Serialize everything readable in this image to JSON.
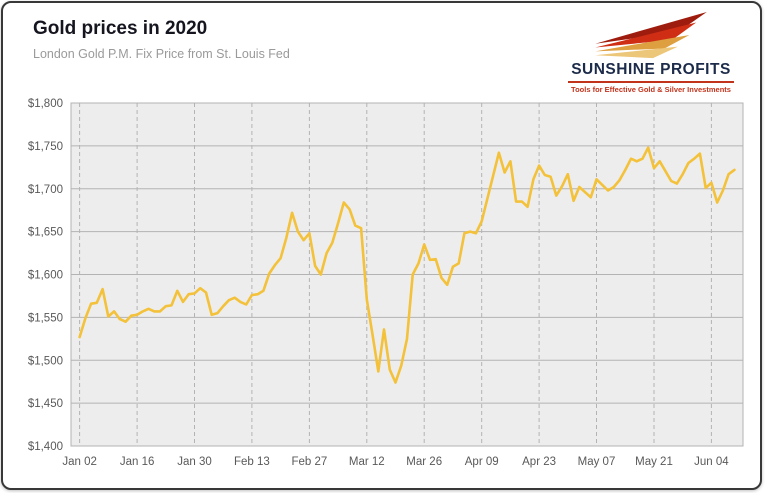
{
  "header": {
    "title": "Gold prices in 2020",
    "subtitle": "London Gold P.M. Fix Price from St. Louis Fed"
  },
  "logo": {
    "word1": "SUNSHINE",
    "word2": "PROFITS",
    "tagline": "Tools for Effective Gold & Silver Investments",
    "navy": "#1c2b4a",
    "red": "#c2331c",
    "gold": "#e0a03c"
  },
  "chart_data": {
    "type": "line",
    "title": "Gold prices in 2020",
    "subtitle": "London Gold P.M. Fix Price from St. Louis Fed",
    "xlabel": "",
    "ylabel": "",
    "ylim": [
      1400,
      1800
    ],
    "ytick_step": 50,
    "yticks": [
      1400,
      1450,
      1500,
      1550,
      1600,
      1650,
      1700,
      1750,
      1800
    ],
    "ytick_labels": [
      "$1,400",
      "$1,450",
      "$1,500",
      "$1,550",
      "$1,600",
      "$1,650",
      "$1,700",
      "$1,750",
      "$1,800"
    ],
    "grid": true,
    "plot_bg": "#ededed",
    "grid_color": "#b3b3b3",
    "x_start": "2020-01-02",
    "x_ticks": [
      {
        "label": "Jan 02",
        "date": "2020-01-02"
      },
      {
        "label": "Jan 16",
        "date": "2020-01-16"
      },
      {
        "label": "Jan 30",
        "date": "2020-01-30"
      },
      {
        "label": "Feb 13",
        "date": "2020-02-13"
      },
      {
        "label": "Feb 27",
        "date": "2020-02-27"
      },
      {
        "label": "Mar 12",
        "date": "2020-03-12"
      },
      {
        "label": "Mar 26",
        "date": "2020-03-26"
      },
      {
        "label": "Apr 09",
        "date": "2020-04-09"
      },
      {
        "label": "Apr 23",
        "date": "2020-04-23"
      },
      {
        "label": "May 07",
        "date": "2020-05-07"
      },
      {
        "label": "May 21",
        "date": "2020-05-21"
      },
      {
        "label": "Jun 04",
        "date": "2020-06-04"
      }
    ],
    "series": [
      {
        "name": "London Gold P.M. Fix Price (USD)",
        "color": "#f3c13a",
        "points": [
          [
            "2020-01-02",
            1527
          ],
          [
            "2020-01-03",
            1549
          ],
          [
            "2020-01-06",
            1566
          ],
          [
            "2020-01-07",
            1567
          ],
          [
            "2020-01-08",
            1583
          ],
          [
            "2020-01-09",
            1551
          ],
          [
            "2020-01-10",
            1557
          ],
          [
            "2020-01-13",
            1548
          ],
          [
            "2020-01-14",
            1545
          ],
          [
            "2020-01-15",
            1552
          ],
          [
            "2020-01-16",
            1553
          ],
          [
            "2020-01-17",
            1557
          ],
          [
            "2020-01-20",
            1560
          ],
          [
            "2020-01-21",
            1557
          ],
          [
            "2020-01-22",
            1557
          ],
          [
            "2020-01-23",
            1563
          ],
          [
            "2020-01-24",
            1564
          ],
          [
            "2020-01-27",
            1581
          ],
          [
            "2020-01-28",
            1568
          ],
          [
            "2020-01-29",
            1577
          ],
          [
            "2020-01-30",
            1578
          ],
          [
            "2020-01-31",
            1584
          ],
          [
            "2020-02-03",
            1579
          ],
          [
            "2020-02-04",
            1553
          ],
          [
            "2020-02-05",
            1555
          ],
          [
            "2020-02-06",
            1563
          ],
          [
            "2020-02-07",
            1570
          ],
          [
            "2020-02-10",
            1573
          ],
          [
            "2020-02-11",
            1568
          ],
          [
            "2020-02-12",
            1565
          ],
          [
            "2020-02-13",
            1576
          ],
          [
            "2020-02-14",
            1577
          ],
          [
            "2020-02-17",
            1581
          ],
          [
            "2020-02-18",
            1601
          ],
          [
            "2020-02-19",
            1611
          ],
          [
            "2020-02-20",
            1619
          ],
          [
            "2020-02-21",
            1643
          ],
          [
            "2020-02-24",
            1672
          ],
          [
            "2020-02-25",
            1650
          ],
          [
            "2020-02-26",
            1640
          ],
          [
            "2020-02-27",
            1648
          ],
          [
            "2020-02-28",
            1610
          ],
          [
            "2020-03-02",
            1600
          ],
          [
            "2020-03-03",
            1625
          ],
          [
            "2020-03-04",
            1637
          ],
          [
            "2020-03-05",
            1660
          ],
          [
            "2020-03-06",
            1684
          ],
          [
            "2020-03-09",
            1676
          ],
          [
            "2020-03-10",
            1657
          ],
          [
            "2020-03-11",
            1654
          ],
          [
            "2020-03-12",
            1571
          ],
          [
            "2020-03-13",
            1530
          ],
          [
            "2020-03-16",
            1487
          ],
          [
            "2020-03-17",
            1536
          ],
          [
            "2020-03-18",
            1489
          ],
          [
            "2020-03-19",
            1474
          ],
          [
            "2020-03-20",
            1494
          ],
          [
            "2020-03-23",
            1525
          ],
          [
            "2020-03-24",
            1600
          ],
          [
            "2020-03-25",
            1613
          ],
          [
            "2020-03-26",
            1635
          ],
          [
            "2020-03-27",
            1617
          ],
          [
            "2020-03-30",
            1618
          ],
          [
            "2020-03-31",
            1596
          ],
          [
            "2020-04-01",
            1588
          ],
          [
            "2020-04-02",
            1609
          ],
          [
            "2020-04-03",
            1613
          ],
          [
            "2020-04-06",
            1648
          ],
          [
            "2020-04-07",
            1650
          ],
          [
            "2020-04-08",
            1648
          ],
          [
            "2020-04-09",
            1662
          ],
          [
            "2020-04-14",
            1742
          ],
          [
            "2020-04-15",
            1719
          ],
          [
            "2020-04-16",
            1732
          ],
          [
            "2020-04-17",
            1685
          ],
          [
            "2020-04-20",
            1685
          ],
          [
            "2020-04-21",
            1679
          ],
          [
            "2020-04-22",
            1711
          ],
          [
            "2020-04-23",
            1727
          ],
          [
            "2020-04-24",
            1716
          ],
          [
            "2020-04-27",
            1714
          ],
          [
            "2020-04-28",
            1692
          ],
          [
            "2020-04-29",
            1703
          ],
          [
            "2020-04-30",
            1717
          ],
          [
            "2020-05-01",
            1686
          ],
          [
            "2020-05-04",
            1702
          ],
          [
            "2020-05-05",
            1696
          ],
          [
            "2020-05-06",
            1690
          ],
          [
            "2020-05-07",
            1711
          ],
          [
            "2020-05-11",
            1698
          ],
          [
            "2020-05-12",
            1702
          ],
          [
            "2020-05-13",
            1710
          ],
          [
            "2020-05-14",
            1722
          ],
          [
            "2020-05-15",
            1735
          ],
          [
            "2020-05-18",
            1732
          ],
          [
            "2020-05-19",
            1735
          ],
          [
            "2020-05-20",
            1748
          ],
          [
            "2020-05-21",
            1724
          ],
          [
            "2020-05-22",
            1732
          ],
          [
            "2020-05-26",
            1709
          ],
          [
            "2020-05-27",
            1706
          ],
          [
            "2020-05-28",
            1717
          ],
          [
            "2020-05-29",
            1730
          ],
          [
            "2020-06-01",
            1735
          ],
          [
            "2020-06-02",
            1741
          ],
          [
            "2020-06-03",
            1701
          ],
          [
            "2020-06-04",
            1707
          ],
          [
            "2020-06-05",
            1684
          ],
          [
            "2020-06-08",
            1698
          ],
          [
            "2020-06-09",
            1717
          ],
          [
            "2020-06-10",
            1722
          ]
        ]
      }
    ]
  }
}
